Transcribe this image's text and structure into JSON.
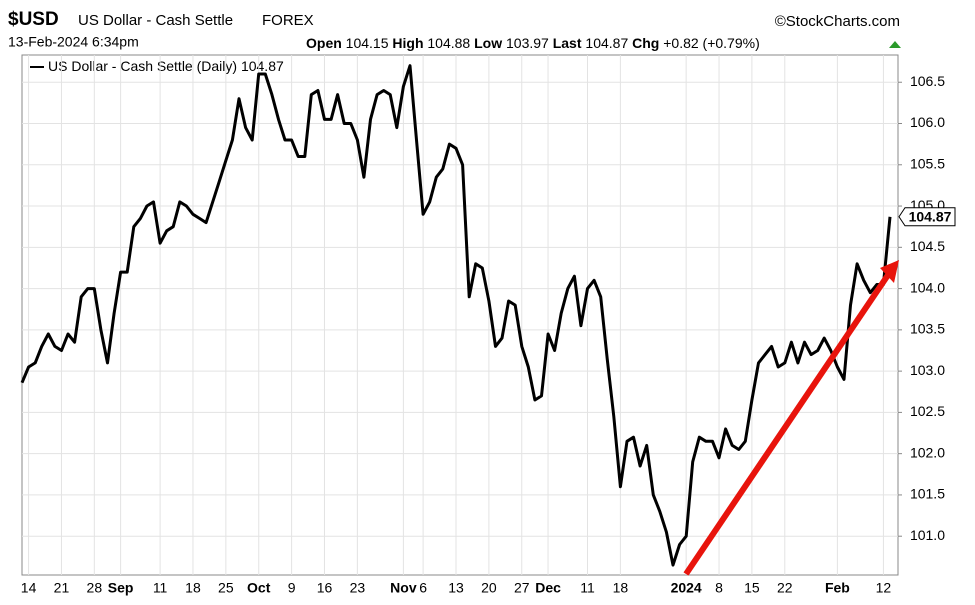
{
  "chart_data": {
    "type": "line",
    "symbol": "$USD",
    "title": "US Dollar - Cash Settle",
    "exchange": "FOREX",
    "source": "©StockCharts.com",
    "timestamp": "13-Feb-2024 6:34pm",
    "quote": [
      {
        "label": "Open",
        "value": 104.15
      },
      {
        "label": "High",
        "value": 104.88
      },
      {
        "label": "Low",
        "value": 103.97
      },
      {
        "label": "Last",
        "value": 104.87
      }
    ],
    "change": {
      "label": "Chg",
      "value": "+0.82 (+0.79%)"
    },
    "categories": [
      null,
      "14",
      null,
      null,
      null,
      null,
      "21",
      null,
      null,
      null,
      null,
      "28",
      null,
      null,
      null,
      "Sep",
      null,
      null,
      null,
      null,
      null,
      "11",
      null,
      null,
      null,
      null,
      "18",
      null,
      null,
      null,
      null,
      "25",
      null,
      null,
      null,
      null,
      "Oct",
      null,
      null,
      null,
      null,
      "9",
      null,
      null,
      null,
      null,
      "16",
      null,
      null,
      null,
      null,
      "23",
      null,
      null,
      null,
      null,
      null,
      null,
      "Nov",
      null,
      null,
      "6",
      null,
      null,
      null,
      null,
      "13",
      null,
      null,
      null,
      null,
      "20",
      null,
      null,
      null,
      null,
      "27",
      null,
      null,
      null,
      "Dec",
      null,
      null,
      null,
      null,
      null,
      "11",
      null,
      null,
      null,
      null,
      "18",
      null,
      null,
      null,
      null,
      null,
      null,
      null,
      null,
      null,
      "2024",
      null,
      null,
      null,
      null,
      "8",
      null,
      null,
      null,
      null,
      "15",
      null,
      null,
      null,
      null,
      "22",
      null,
      null,
      null,
      null,
      null,
      null,
      null,
      "Feb",
      null,
      null,
      null,
      null,
      null,
      null,
      "12",
      null
    ],
    "series": [
      {
        "name": "US Dollar - Cash Settle (Daily)",
        "color": "#000000",
        "values": [
          102.86,
          103.05,
          103.1,
          103.3,
          103.45,
          103.3,
          103.25,
          103.45,
          103.35,
          103.9,
          104.0,
          104.0,
          103.5,
          103.1,
          103.7,
          104.2,
          104.2,
          104.75,
          104.85,
          105.0,
          105.05,
          104.55,
          104.7,
          104.75,
          105.05,
          105.0,
          104.9,
          104.85,
          104.8,
          105.05,
          105.3,
          105.55,
          105.8,
          106.3,
          105.95,
          105.8,
          106.6,
          106.6,
          106.35,
          106.05,
          105.8,
          105.8,
          105.6,
          105.6,
          106.35,
          106.4,
          106.05,
          106.05,
          106.35,
          106.0,
          106.0,
          105.8,
          105.35,
          106.05,
          106.35,
          106.4,
          106.35,
          105.95,
          106.45,
          106.7,
          105.8,
          104.9,
          105.05,
          105.35,
          105.45,
          105.75,
          105.7,
          105.5,
          103.9,
          104.3,
          104.25,
          103.85,
          103.3,
          103.4,
          103.85,
          103.8,
          103.3,
          103.05,
          102.65,
          102.7,
          103.45,
          103.25,
          103.7,
          104.0,
          104.15,
          103.55,
          104.0,
          104.1,
          103.9,
          103.15,
          102.45,
          101.6,
          102.15,
          102.2,
          101.85,
          102.1,
          101.5,
          101.3,
          101.05,
          100.65,
          100.9,
          101.0,
          101.9,
          102.2,
          102.15,
          102.15,
          101.95,
          102.3,
          102.1,
          102.05,
          102.15,
          102.65,
          103.1,
          103.2,
          103.3,
          103.05,
          103.1,
          103.35,
          103.1,
          103.35,
          103.2,
          103.25,
          103.4,
          103.25,
          103.05,
          102.9,
          103.8,
          104.3,
          104.1,
          103.95,
          104.05,
          104.05,
          104.87
        ]
      }
    ],
    "ylim": [
      100.53,
      106.83
    ],
    "yticks": [
      {
        "value": 101,
        "label": "101.0"
      },
      101.5,
      {
        "value": 102,
        "label": "102.0"
      },
      102.5,
      {
        "value": 103,
        "label": "103.0"
      },
      103.5,
      {
        "value": 104,
        "label": "104.0"
      },
      104.5,
      {
        "value": 105,
        "label": "105.0"
      },
      105.5,
      {
        "value": 106,
        "label": "106.0"
      },
      106.5
    ],
    "grid": true
  }
}
